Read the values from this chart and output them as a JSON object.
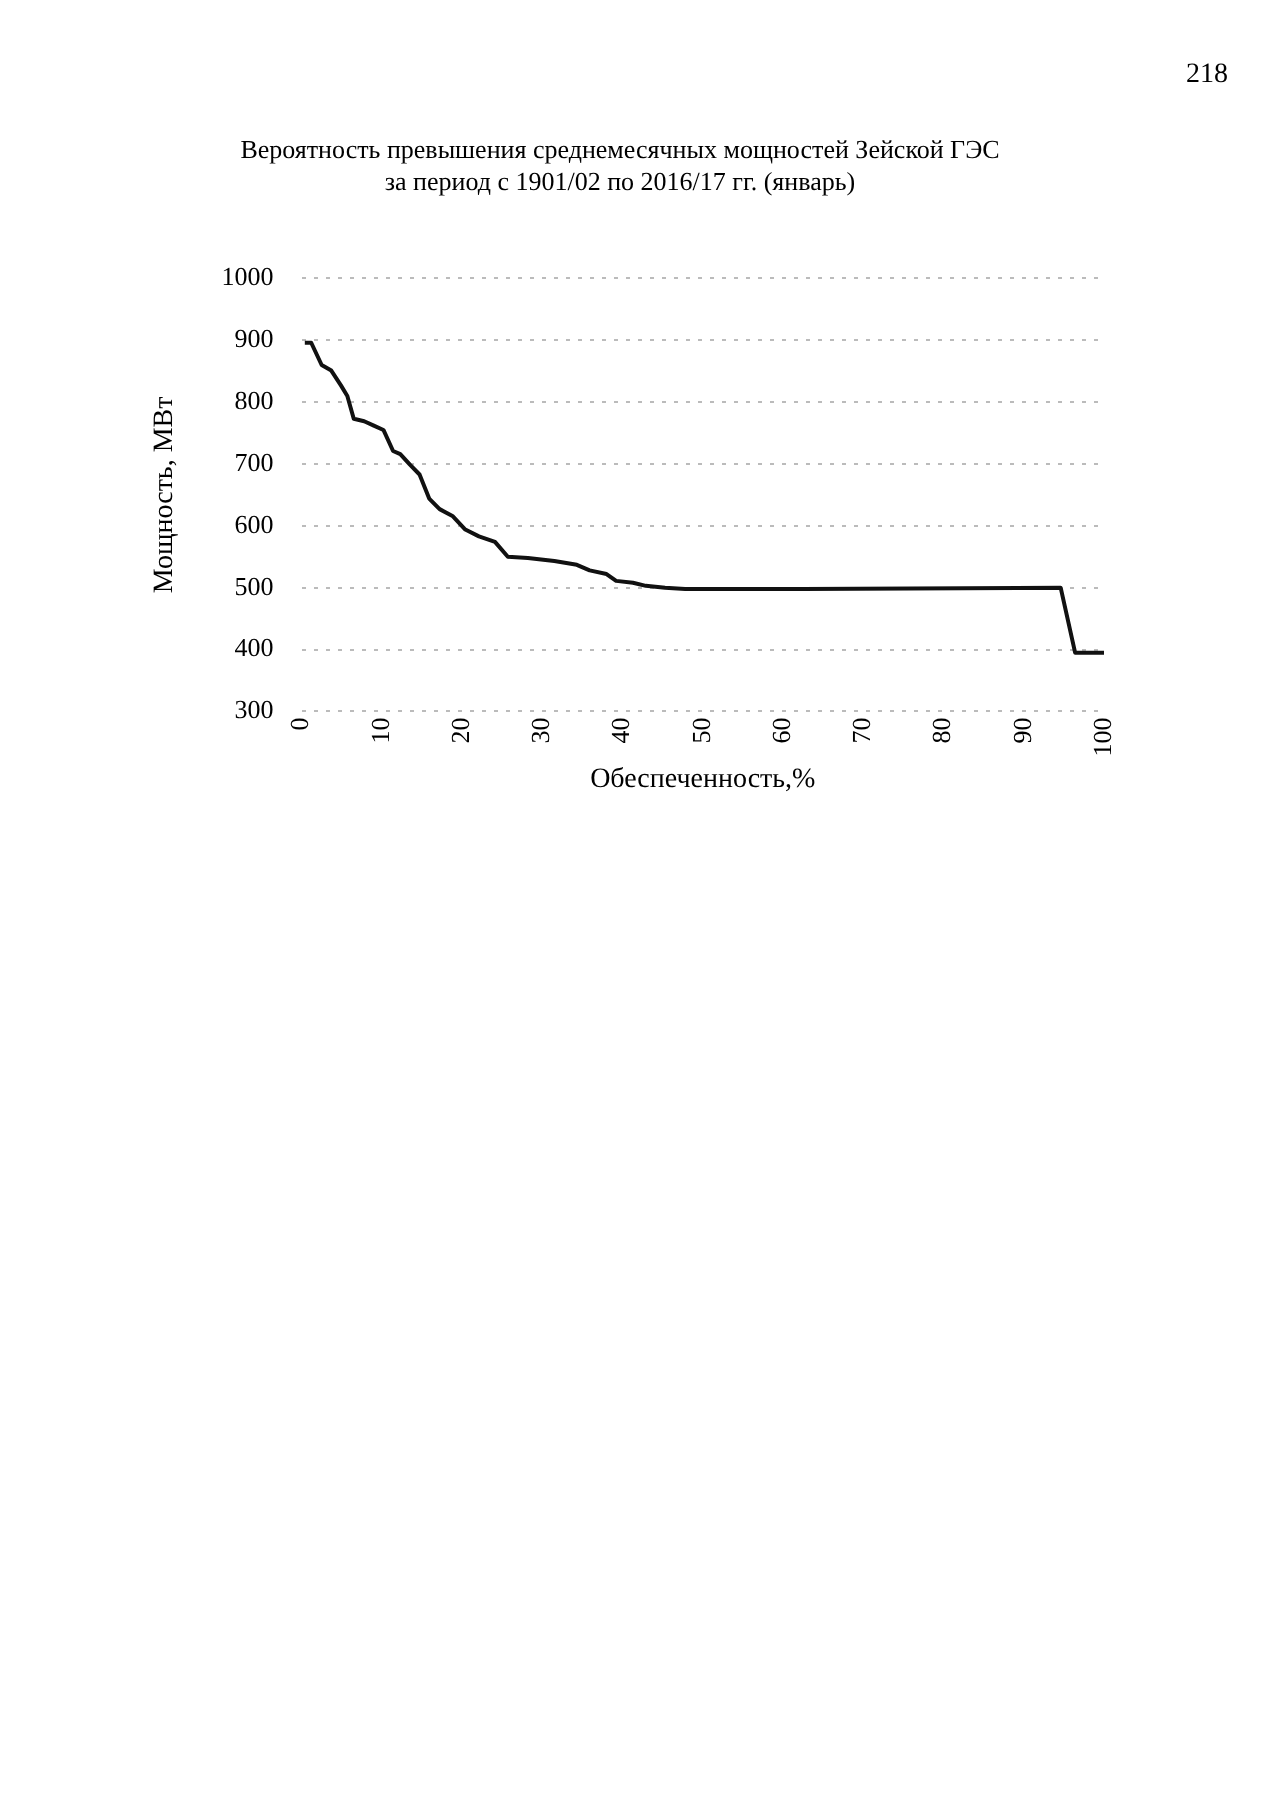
{
  "chart_data": {
    "type": "line",
    "title": [
      "Вероятность превышения среднемесячных мощностей Зейской ГЭС",
      "за период с 1901/02 по 2016/17 гг. (январь)"
    ],
    "xlabel": "Обеспеченность,%",
    "ylabel": "Мощность, МВт",
    "annotations": [
      "218"
    ],
    "series": [
      {
        "color": "#111111",
        "x": [
          0.4,
          1.2,
          2.5,
          3.7,
          4.9,
          5.7,
          6.5,
          7.8,
          9,
          10.2,
          11.4,
          12.3,
          13.5,
          14.7,
          15.9,
          17.2,
          18.8,
          20.4,
          22.1,
          24.1,
          25.7,
          28.2,
          31.5,
          34.3,
          35.9,
          38,
          39.2,
          41.3,
          42.9,
          45.3,
          47.8,
          62.5,
          94.6,
          96.4,
          100
        ],
        "values": [
          896,
          896,
          860,
          851,
          827,
          810,
          773,
          769,
          762,
          755,
          721,
          716,
          699,
          683,
          644,
          627,
          616,
          594,
          583,
          574,
          550,
          548,
          543,
          537,
          528,
          522,
          511,
          508,
          503,
          500,
          498,
          498,
          500,
          395,
          395
        ]
      }
    ],
    "xlim": [
      0,
      100
    ],
    "xticks": [
      0,
      10,
      20,
      30,
      40,
      50,
      60,
      70,
      80,
      90,
      100
    ],
    "ylim": [
      300,
      1000
    ],
    "yticks": [
      300,
      400,
      500,
      600,
      700,
      800,
      900,
      1000
    ],
    "grid": "y",
    "marker": "none",
    "line_style": "solid",
    "legend": false
  }
}
